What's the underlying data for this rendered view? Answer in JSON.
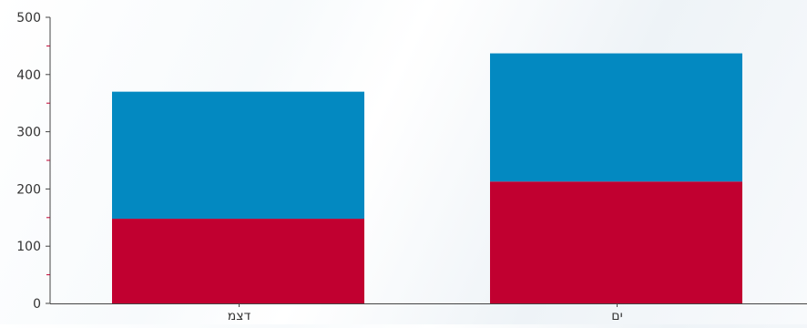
{
  "chart_data": {
    "type": "bar",
    "stacked": true,
    "categories": [
      "דצמ",
      "ים"
    ],
    "series": [
      {
        "values": [
          148,
          213
        ],
        "color": "#c10030"
      },
      {
        "values": [
          222,
          224
        ],
        "color": "#0389c1"
      }
    ],
    "ylim": [
      0,
      500
    ],
    "yticks": [
      "0",
      "100",
      "200",
      "300",
      "400",
      "500"
    ],
    "minor_tick_color": "#c10030",
    "grid": false,
    "legend": "none"
  }
}
